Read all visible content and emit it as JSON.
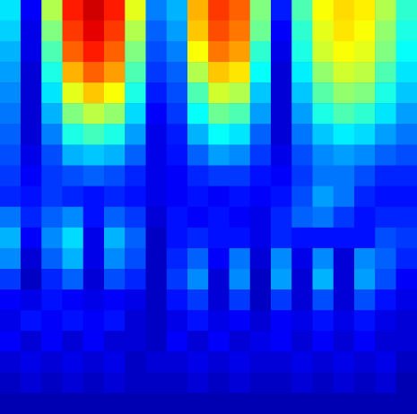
{
  "chart_data": {
    "type": "heatmap",
    "tick_labels": false,
    "color_range": [
      0,
      100
    ],
    "cells": [
      [
        35,
        12,
        55,
        85,
        92,
        85,
        60,
        25,
        30,
        70,
        82,
        78,
        50,
        15,
        45,
        62,
        66,
        64,
        55,
        42
      ],
      [
        33,
        10,
        50,
        82,
        90,
        82,
        55,
        22,
        28,
        68,
        80,
        76,
        48,
        12,
        42,
        60,
        65,
        62,
        52,
        40
      ],
      [
        30,
        10,
        45,
        78,
        85,
        78,
        50,
        20,
        25,
        62,
        76,
        72,
        42,
        10,
        40,
        58,
        62,
        60,
        50,
        38
      ],
      [
        28,
        8,
        40,
        70,
        78,
        72,
        45,
        18,
        22,
        55,
        68,
        65,
        38,
        8,
        36,
        52,
        58,
        56,
        45,
        35
      ],
      [
        26,
        8,
        35,
        60,
        68,
        62,
        40,
        15,
        20,
        45,
        58,
        55,
        32,
        8,
        32,
        46,
        52,
        50,
        40,
        32
      ],
      [
        24,
        8,
        30,
        50,
        56,
        52,
        34,
        12,
        18,
        38,
        48,
        45,
        28,
        8,
        28,
        40,
        45,
        42,
        35,
        28
      ],
      [
        22,
        8,
        25,
        40,
        44,
        40,
        28,
        10,
        15,
        30,
        38,
        35,
        22,
        8,
        24,
        32,
        36,
        34,
        28,
        24
      ],
      [
        20,
        10,
        20,
        30,
        32,
        30,
        22,
        10,
        14,
        22,
        28,
        26,
        18,
        10,
        20,
        26,
        28,
        26,
        22,
        20
      ],
      [
        18,
        12,
        18,
        20,
        22,
        20,
        16,
        10,
        12,
        16,
        18,
        18,
        14,
        12,
        18,
        24,
        24,
        20,
        16,
        16
      ],
      [
        16,
        14,
        18,
        16,
        14,
        16,
        14,
        10,
        12,
        14,
        12,
        14,
        12,
        14,
        20,
        28,
        24,
        16,
        14,
        14
      ],
      [
        24,
        16,
        22,
        26,
        14,
        22,
        18,
        8,
        14,
        12,
        14,
        12,
        10,
        16,
        22,
        24,
        18,
        14,
        16,
        16
      ],
      [
        30,
        12,
        26,
        34,
        10,
        30,
        22,
        6,
        14,
        16,
        14,
        14,
        10,
        16,
        14,
        14,
        14,
        14,
        20,
        18
      ],
      [
        26,
        8,
        22,
        30,
        10,
        26,
        20,
        6,
        16,
        22,
        12,
        24,
        8,
        26,
        10,
        26,
        8,
        26,
        22,
        16
      ],
      [
        18,
        6,
        16,
        22,
        8,
        20,
        16,
        6,
        18,
        26,
        8,
        26,
        6,
        28,
        8,
        30,
        8,
        28,
        20,
        12
      ],
      [
        12,
        10,
        14,
        12,
        10,
        12,
        10,
        6,
        14,
        18,
        8,
        18,
        6,
        18,
        8,
        20,
        8,
        20,
        14,
        10
      ],
      [
        10,
        14,
        12,
        14,
        12,
        14,
        8,
        6,
        10,
        14,
        10,
        12,
        8,
        12,
        10,
        14,
        10,
        14,
        10,
        8
      ],
      [
        12,
        8,
        12,
        8,
        12,
        8,
        8,
        6,
        12,
        8,
        12,
        8,
        10,
        12,
        8,
        12,
        8,
        12,
        8,
        8
      ],
      [
        8,
        10,
        8,
        10,
        8,
        10,
        6,
        8,
        8,
        10,
        8,
        10,
        8,
        8,
        10,
        8,
        10,
        8,
        10,
        6
      ],
      [
        6,
        8,
        6,
        8,
        6,
        8,
        6,
        6,
        6,
        8,
        6,
        8,
        6,
        6,
        8,
        6,
        8,
        6,
        8,
        4
      ],
      [
        4,
        4,
        4,
        4,
        4,
        4,
        4,
        4,
        4,
        4,
        4,
        4,
        4,
        4,
        4,
        4,
        4,
        4,
        4,
        4
      ]
    ]
  }
}
